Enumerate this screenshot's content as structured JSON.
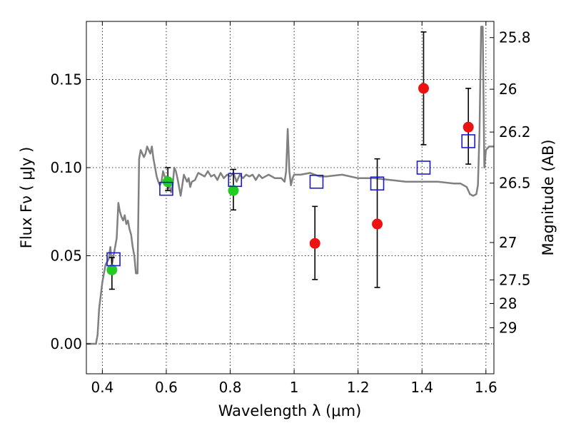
{
  "chart_data": {
    "type": "scatter",
    "xlabel": "Wavelength  λ (μm)",
    "ylabel_left": "Flux  Fν  ( μJy )",
    "ylabel_right": "Magnitude (AB)",
    "xlim": [
      0.35,
      1.625
    ],
    "ylim": [
      -0.017,
      0.183
    ],
    "grid": true,
    "x_ticks": [
      0.4,
      0.6,
      0.8,
      1.0,
      1.2,
      1.4,
      1.6
    ],
    "x_tick_labels": [
      "0.4",
      "0.6",
      "0.8",
      "1",
      "1.2",
      "1.4",
      "1.6"
    ],
    "y_ticks": [
      0.0,
      0.05,
      0.1,
      0.15
    ],
    "y_tick_labels": [
      "0.00",
      "0.05",
      "0.10",
      "0.15"
    ],
    "right_ticks": [
      {
        "label": "25.8",
        "flux": 0.1738
      },
      {
        "label": "26",
        "flux": 0.1445
      },
      {
        "label": "26.2",
        "flux": 0.1202
      },
      {
        "label": "26.5",
        "flux": 0.0912
      },
      {
        "label": "27",
        "flux": 0.0575
      },
      {
        "label": "27.5",
        "flux": 0.0363
      },
      {
        "label": "28",
        "flux": 0.0229
      },
      {
        "label": "29",
        "flux": 0.0091
      }
    ],
    "colors": {
      "model": "#808080",
      "red": "#ee1111",
      "green": "#22cc22",
      "square": "#1a1acc",
      "errorbar": "#000000"
    },
    "series": [
      {
        "name": "model spectrum",
        "kind": "line",
        "x": [
          0.35,
          0.38,
          0.385,
          0.39,
          0.4,
          0.41,
          0.42,
          0.425,
          0.43,
          0.435,
          0.44,
          0.445,
          0.45,
          0.455,
          0.46,
          0.465,
          0.47,
          0.475,
          0.48,
          0.485,
          0.49,
          0.495,
          0.5,
          0.505,
          0.51,
          0.515,
          0.52,
          0.525,
          0.53,
          0.535,
          0.54,
          0.545,
          0.55,
          0.555,
          0.56,
          0.565,
          0.57,
          0.575,
          0.58,
          0.585,
          0.59,
          0.595,
          0.6,
          0.605,
          0.61,
          0.615,
          0.62,
          0.625,
          0.63,
          0.635,
          0.64,
          0.645,
          0.65,
          0.655,
          0.66,
          0.665,
          0.67,
          0.675,
          0.68,
          0.69,
          0.7,
          0.71,
          0.72,
          0.73,
          0.74,
          0.75,
          0.76,
          0.77,
          0.78,
          0.79,
          0.8,
          0.81,
          0.82,
          0.83,
          0.84,
          0.85,
          0.86,
          0.87,
          0.88,
          0.89,
          0.9,
          0.92,
          0.94,
          0.96,
          0.97,
          0.975,
          0.98,
          0.985,
          0.99,
          0.995,
          1.0,
          1.02,
          1.05,
          1.08,
          1.1,
          1.15,
          1.2,
          1.25,
          1.3,
          1.35,
          1.4,
          1.45,
          1.5,
          1.52,
          1.53,
          1.54,
          1.55,
          1.56,
          1.57,
          1.575,
          1.58,
          1.585,
          1.59,
          1.595,
          1.6,
          1.61,
          1.625
        ],
        "y": [
          0.0,
          0.0,
          0.005,
          0.02,
          0.035,
          0.045,
          0.048,
          0.055,
          0.045,
          0.05,
          0.055,
          0.06,
          0.08,
          0.075,
          0.072,
          0.07,
          0.073,
          0.068,
          0.07,
          0.065,
          0.062,
          0.055,
          0.05,
          0.04,
          0.04,
          0.105,
          0.11,
          0.108,
          0.106,
          0.108,
          0.112,
          0.11,
          0.108,
          0.112,
          0.105,
          0.1,
          0.095,
          0.092,
          0.09,
          0.092,
          0.098,
          0.095,
          0.092,
          0.088,
          0.09,
          0.086,
          0.09,
          0.1,
          0.098,
          0.094,
          0.089,
          0.084,
          0.09,
          0.096,
          0.094,
          0.092,
          0.094,
          0.089,
          0.092,
          0.093,
          0.097,
          0.096,
          0.095,
          0.098,
          0.095,
          0.096,
          0.093,
          0.097,
          0.094,
          0.096,
          0.095,
          0.097,
          0.092,
          0.096,
          0.094,
          0.096,
          0.095,
          0.096,
          0.093,
          0.096,
          0.094,
          0.096,
          0.094,
          0.094,
          0.092,
          0.098,
          0.122,
          0.098,
          0.09,
          0.094,
          0.096,
          0.096,
          0.097,
          0.095,
          0.095,
          0.096,
          0.094,
          0.094,
          0.093,
          0.092,
          0.092,
          0.092,
          0.091,
          0.091,
          0.09,
          0.089,
          0.085,
          0.084,
          0.085,
          0.09,
          0.12,
          0.18,
          0.18,
          0.1,
          0.11,
          0.112,
          0.112
        ]
      },
      {
        "name": "red photometry",
        "kind": "points",
        "marker": "circle",
        "x": [
          1.065,
          1.26,
          1.405,
          1.545
        ],
        "y": [
          0.057,
          0.068,
          0.145,
          0.123
        ],
        "err_low": [
          0.0365,
          0.032,
          0.113,
          0.102
        ],
        "err_high": [
          0.078,
          0.105,
          0.177,
          0.145
        ]
      },
      {
        "name": "green photometry",
        "kind": "points",
        "marker": "circle",
        "x": [
          0.43,
          0.605,
          0.81
        ],
        "y": [
          0.042,
          0.092,
          0.087
        ],
        "err_low": [
          0.031,
          0.087,
          0.076
        ],
        "err_high": [
          0.049,
          0.1,
          0.099
        ]
      },
      {
        "name": "model fluxes",
        "kind": "points",
        "marker": "open-square",
        "x": [
          0.435,
          0.6,
          0.815,
          1.07,
          1.26,
          1.405,
          1.545
        ],
        "y": [
          0.048,
          0.088,
          0.093,
          0.092,
          0.091,
          0.1,
          0.115
        ]
      }
    ]
  }
}
